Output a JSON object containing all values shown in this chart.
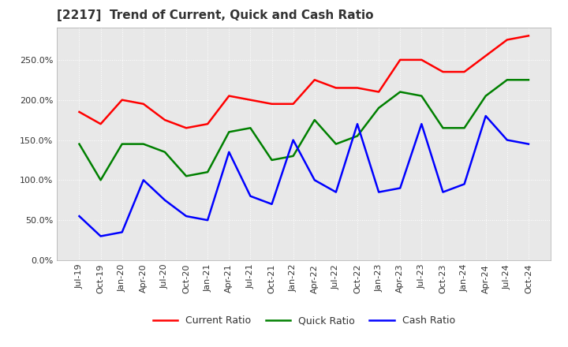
{
  "title": "[2217]  Trend of Current, Quick and Cash Ratio",
  "x_labels": [
    "Jul-19",
    "Oct-19",
    "Jan-20",
    "Apr-20",
    "Jul-20",
    "Oct-20",
    "Jan-21",
    "Apr-21",
    "Jul-21",
    "Oct-21",
    "Jan-22",
    "Apr-22",
    "Jul-22",
    "Oct-22",
    "Jan-23",
    "Apr-23",
    "Jul-23",
    "Oct-23",
    "Jan-24",
    "Apr-24",
    "Jul-24",
    "Oct-24"
  ],
  "current_ratio": [
    1.85,
    1.7,
    2.0,
    1.95,
    1.75,
    1.65,
    1.7,
    2.05,
    2.0,
    1.95,
    1.95,
    2.25,
    2.15,
    2.15,
    2.1,
    2.5,
    2.5,
    2.35,
    2.35,
    2.55,
    2.75,
    2.8
  ],
  "quick_ratio": [
    1.45,
    1.0,
    1.45,
    1.45,
    1.35,
    1.05,
    1.1,
    1.6,
    1.65,
    1.25,
    1.3,
    1.75,
    1.45,
    1.55,
    1.9,
    2.1,
    2.05,
    1.65,
    1.65,
    2.05,
    2.25,
    2.25
  ],
  "cash_ratio": [
    0.55,
    0.3,
    0.35,
    1.0,
    0.75,
    0.55,
    0.5,
    1.35,
    0.8,
    0.7,
    1.5,
    1.0,
    0.85,
    1.7,
    0.85,
    0.9,
    1.7,
    0.85,
    0.95,
    1.8,
    1.5,
    1.45
  ],
  "current_color": "#ff0000",
  "quick_color": "#008000",
  "cash_color": "#0000ff",
  "bg_color": "#ffffff",
  "plot_bg_color": "#e8e8e8",
  "ylim": [
    0.0,
    2.9
  ],
  "yticks": [
    0.0,
    0.5,
    1.0,
    1.5,
    2.0,
    2.5
  ],
  "title_fontsize": 11,
  "legend_labels": [
    "Current Ratio",
    "Quick Ratio",
    "Cash Ratio"
  ]
}
